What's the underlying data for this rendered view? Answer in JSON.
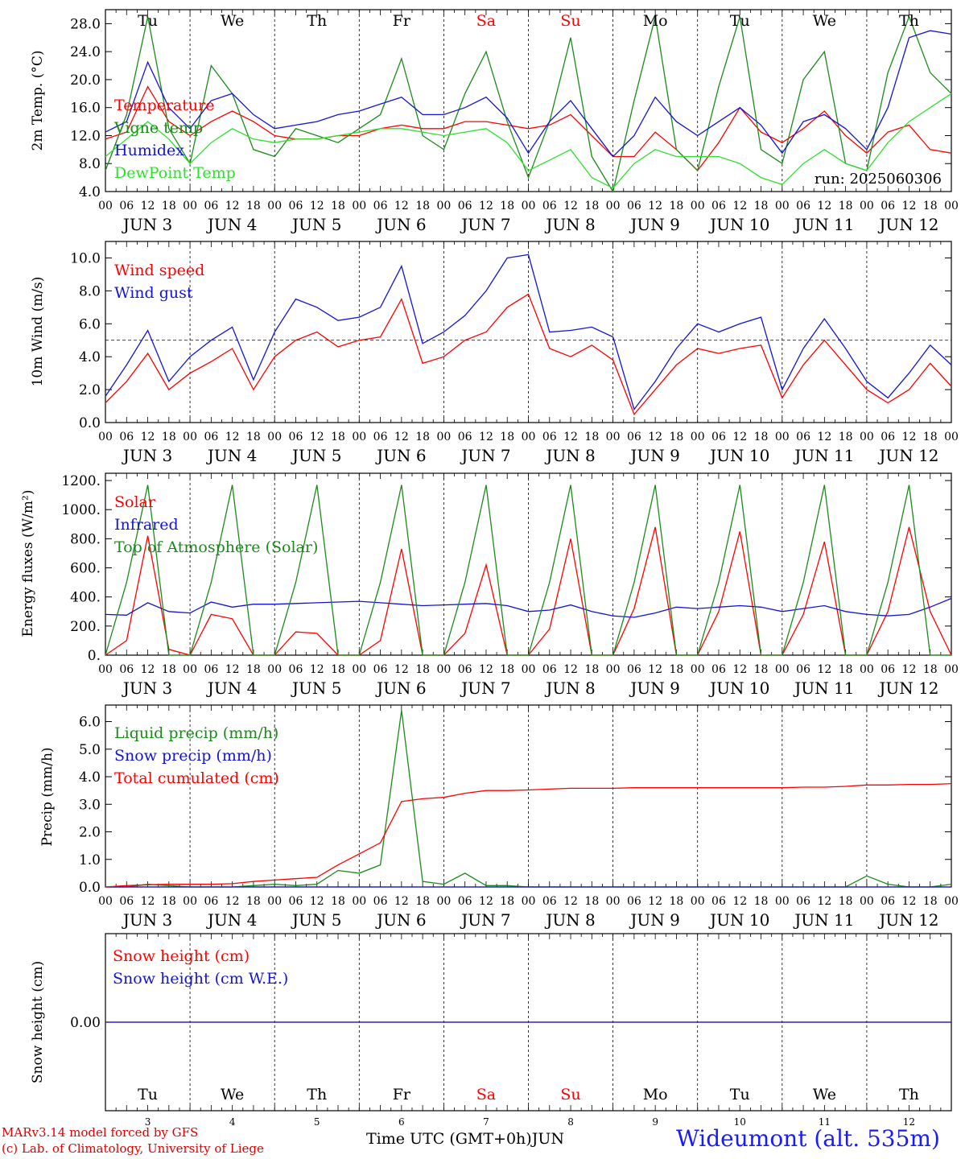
{
  "days": [
    {
      "dow": "Tu",
      "date": "3",
      "label": "JUN  3",
      "weekend": false
    },
    {
      "dow": "We",
      "date": "4",
      "label": "JUN  4",
      "weekend": false
    },
    {
      "dow": "Th",
      "date": "5",
      "label": "JUN  5",
      "weekend": false
    },
    {
      "dow": "Fr",
      "date": "6",
      "label": "JUN  6",
      "weekend": false
    },
    {
      "dow": "Sa",
      "date": "7",
      "label": "JUN  7",
      "weekend": true
    },
    {
      "dow": "Su",
      "date": "8",
      "label": "JUN  8",
      "weekend": true
    },
    {
      "dow": "Mo",
      "date": "9",
      "label": "JUN  9",
      "weekend": false
    },
    {
      "dow": "Tu",
      "date": "10",
      "label": "JUN 10",
      "weekend": false
    },
    {
      "dow": "We",
      "date": "11",
      "label": "JUN 11",
      "weekend": false
    },
    {
      "dow": "Th",
      "date": "12",
      "label": "JUN 12",
      "weekend": false
    }
  ],
  "hour_ticks": [
    "00",
    "06",
    "12",
    "18"
  ],
  "colors": {
    "red": "#ff0000",
    "green": "#1a8a1a",
    "blue": "#1414d4",
    "light_green": "#2ee02e",
    "station": "#1a1aff",
    "credit": "#e00000"
  },
  "footer": {
    "credit_line1": "MARv3.14 model forced by GFS",
    "credit_line2": "(c) Lab. of Climatology, University of Liege",
    "x_title": "Time UTC (GMT+0h)",
    "x_unit": "JUN",
    "station": "Wideumont (alt. 535m)"
  },
  "chart_data": [
    {
      "id": "temperature",
      "type": "line",
      "ylabel": "2m Temp. (°C)",
      "ylim": [
        4,
        30
      ],
      "yticks": [
        "4.0",
        "8.0",
        "12.0",
        "16.0",
        "20.0",
        "24.0",
        "28.0"
      ],
      "ytick_values": [
        4,
        8,
        12,
        16,
        20,
        24,
        28
      ],
      "note": "run: 2025060306",
      "x_hours": [
        0,
        6,
        12,
        18,
        24,
        30,
        36,
        42,
        48,
        54,
        60,
        66,
        72,
        78,
        84,
        90,
        96,
        102,
        108,
        114,
        120,
        126,
        132,
        138,
        144,
        150,
        156,
        162,
        168,
        174,
        180,
        186,
        192,
        198,
        204,
        210,
        216,
        222,
        228,
        234,
        240
      ],
      "series": [
        {
          "name": "Temperature",
          "color": "red",
          "values": [
            11.5,
            12.5,
            19,
            14,
            12,
            14,
            15.5,
            14,
            12,
            11.5,
            11.5,
            12,
            12,
            13,
            13.5,
            13,
            13,
            14,
            14,
            13.5,
            13,
            13.5,
            15,
            12,
            9,
            9,
            12.5,
            10,
            7,
            11,
            16,
            12.5,
            11,
            13,
            15.5,
            12,
            9.5,
            12.5,
            13.5,
            10,
            9.5
          ]
        },
        {
          "name": "Vigne temp",
          "color": "green",
          "values": [
            7,
            15,
            29,
            13,
            8,
            22,
            18,
            10,
            9,
            13,
            12,
            11,
            13,
            15,
            23,
            12,
            10,
            18,
            24,
            14,
            6,
            14,
            26,
            9,
            4,
            17,
            29,
            10,
            7,
            19,
            29,
            10,
            8,
            20,
            24,
            8,
            7,
            21,
            29,
            21,
            18
          ]
        },
        {
          "name": "Humidex",
          "color": "blue",
          "values": [
            12.5,
            14,
            22.5,
            16,
            13,
            17,
            18,
            15,
            13,
            13.5,
            14,
            15,
            15.5,
            16.5,
            17.5,
            15,
            15,
            16,
            17.5,
            14.5,
            9.5,
            14,
            17,
            13,
            9,
            12,
            17.5,
            14,
            12,
            14,
            16,
            13.5,
            9.5,
            14,
            15,
            13,
            10,
            16,
            26,
            27,
            26.5
          ]
        },
        {
          "name": "DewPoint Temp",
          "color": "light_green",
          "values": [
            9,
            11.5,
            14,
            11.5,
            8,
            11,
            13,
            11.5,
            11,
            11.5,
            11.5,
            12,
            12.5,
            13,
            13,
            12.5,
            12,
            12.5,
            13,
            11,
            7,
            8.5,
            10,
            6,
            4.5,
            8,
            10,
            9,
            9,
            9,
            8,
            6,
            5,
            8,
            10,
            8,
            7,
            11,
            14,
            16,
            18
          ]
        }
      ]
    },
    {
      "id": "wind",
      "type": "line",
      "ylabel": "10m Wind (m/s)",
      "ylim": [
        0,
        11
      ],
      "yticks": [
        "0.0",
        "2.0",
        "4.0",
        "6.0",
        "8.0",
        "10.0"
      ],
      "ytick_values": [
        0,
        2,
        4,
        6,
        8,
        10
      ],
      "hline": 5,
      "x_hours": [
        0,
        6,
        12,
        18,
        24,
        30,
        36,
        42,
        48,
        54,
        60,
        66,
        72,
        78,
        84,
        90,
        96,
        102,
        108,
        114,
        120,
        126,
        132,
        138,
        144,
        150,
        156,
        162,
        168,
        174,
        180,
        186,
        192,
        198,
        204,
        210,
        216,
        222,
        228,
        234,
        240
      ],
      "series": [
        {
          "name": "Wind speed",
          "color": "red",
          "values": [
            1.2,
            2.5,
            4.2,
            2,
            3,
            3.7,
            4.5,
            2,
            4,
            5,
            5.5,
            4.6,
            5,
            5.2,
            7.5,
            3.6,
            4,
            5,
            5.5,
            7,
            7.8,
            4.5,
            4,
            4.7,
            3.8,
            0.5,
            2,
            3.5,
            4.5,
            4.2,
            4.5,
            4.7,
            1.5,
            3.5,
            5,
            3.5,
            2,
            1.2,
            2,
            3.6,
            2.2
          ]
        },
        {
          "name": "Wind gust",
          "color": "blue",
          "values": [
            1.6,
            3.5,
            5.6,
            2.5,
            4,
            5,
            5.8,
            2.6,
            5.5,
            7.5,
            7,
            6.2,
            6.4,
            7,
            9.5,
            4.8,
            5.5,
            6.5,
            8,
            10,
            10.2,
            5.5,
            5.6,
            5.8,
            5.2,
            0.8,
            2.5,
            4.5,
            6,
            5.5,
            6,
            6.4,
            2,
            4.5,
            6.3,
            4.5,
            2.5,
            1.5,
            3,
            4.7,
            3.5
          ]
        }
      ]
    },
    {
      "id": "energy",
      "type": "line",
      "ylabel": "Energy fluxes (W/m²)",
      "ylim": [
        0,
        1250
      ],
      "yticks": [
        "0.",
        "200.",
        "400.",
        "600.",
        "800.",
        "1000.",
        "1200."
      ],
      "ytick_values": [
        0,
        200,
        400,
        600,
        800,
        1000,
        1200
      ],
      "x_hours": [
        0,
        6,
        12,
        18,
        24,
        30,
        36,
        42,
        48,
        54,
        60,
        66,
        72,
        78,
        84,
        90,
        96,
        102,
        108,
        114,
        120,
        126,
        132,
        138,
        144,
        150,
        156,
        162,
        168,
        174,
        180,
        186,
        192,
        198,
        204,
        210,
        216,
        222,
        228,
        234,
        240
      ],
      "series": [
        {
          "name": "Solar",
          "color": "red",
          "values": [
            0,
            100,
            820,
            40,
            0,
            280,
            250,
            0,
            0,
            160,
            150,
            0,
            0,
            100,
            730,
            0,
            0,
            150,
            620,
            0,
            0,
            180,
            800,
            0,
            0,
            320,
            880,
            0,
            0,
            300,
            850,
            0,
            0,
            280,
            780,
            0,
            0,
            300,
            880,
            300,
            0
          ]
        },
        {
          "name": "Infrared",
          "color": "blue",
          "values": [
            280,
            275,
            360,
            300,
            290,
            365,
            330,
            350,
            350,
            355,
            360,
            365,
            370,
            360,
            350,
            340,
            345,
            350,
            355,
            340,
            300,
            310,
            345,
            300,
            270,
            260,
            290,
            330,
            320,
            330,
            340,
            330,
            300,
            320,
            340,
            300,
            280,
            270,
            280,
            330,
            390
          ]
        },
        {
          "name": "Top of Atmosphere (Solar)",
          "color": "green",
          "values": [
            0,
            500,
            1170,
            0,
            0,
            500,
            1170,
            0,
            0,
            500,
            1170,
            0,
            0,
            500,
            1170,
            0,
            0,
            500,
            1170,
            0,
            0,
            500,
            1170,
            0,
            0,
            500,
            1170,
            0,
            0,
            500,
            1170,
            0,
            0,
            500,
            1170,
            0,
            0,
            500,
            1170,
            0,
            0
          ]
        }
      ]
    },
    {
      "id": "precip",
      "type": "line",
      "ylabel": "Precip (mm/h)",
      "ylim": [
        0,
        6.6
      ],
      "yticks": [
        "0.0",
        "1.0",
        "2.0",
        "3.0",
        "4.0",
        "5.0",
        "6.0"
      ],
      "ytick_values": [
        0,
        1,
        2,
        3,
        4,
        5,
        6
      ],
      "x_hours": [
        0,
        6,
        12,
        18,
        24,
        30,
        36,
        42,
        48,
        54,
        60,
        66,
        72,
        78,
        84,
        90,
        96,
        102,
        108,
        114,
        120,
        126,
        132,
        138,
        144,
        150,
        156,
        162,
        168,
        174,
        180,
        186,
        192,
        198,
        204,
        210,
        216,
        222,
        228,
        234,
        240
      ],
      "series": [
        {
          "name": "Liquid precip (mm/h)",
          "color": "green",
          "values": [
            0,
            0,
            0.1,
            0.05,
            0,
            0,
            0,
            0.05,
            0.1,
            0.05,
            0.1,
            0.6,
            0.5,
            0.8,
            6.4,
            0.2,
            0.1,
            0.5,
            0.05,
            0.05,
            0,
            0,
            0,
            0,
            0,
            0,
            0,
            0,
            0,
            0,
            0,
            0,
            0,
            0,
            0,
            0,
            0.4,
            0.1,
            0,
            0,
            0.1
          ]
        },
        {
          "name": "Snow precip (mm/h)",
          "color": "blue",
          "values": [
            0,
            0,
            0,
            0,
            0,
            0,
            0,
            0,
            0,
            0,
            0,
            0,
            0,
            0,
            0,
            0,
            0,
            0,
            0,
            0,
            0,
            0,
            0,
            0,
            0,
            0,
            0,
            0,
            0,
            0,
            0,
            0,
            0,
            0,
            0,
            0,
            0,
            0,
            0,
            0,
            0
          ]
        },
        {
          "name": "Total cumulated (cm)",
          "color": "red",
          "values": [
            0,
            0.05,
            0.08,
            0.1,
            0.1,
            0.1,
            0.12,
            0.2,
            0.25,
            0.3,
            0.35,
            0.8,
            1.2,
            1.6,
            3.1,
            3.2,
            3.25,
            3.4,
            3.5,
            3.5,
            3.52,
            3.55,
            3.58,
            3.58,
            3.58,
            3.6,
            3.6,
            3.6,
            3.6,
            3.6,
            3.6,
            3.6,
            3.6,
            3.62,
            3.62,
            3.65,
            3.7,
            3.7,
            3.72,
            3.72,
            3.75
          ]
        }
      ]
    },
    {
      "id": "snow",
      "type": "line",
      "ylabel": "Snow height (cm)",
      "ylim": [
        -1,
        1
      ],
      "yticks": [
        "0.00"
      ],
      "ytick_values": [
        0
      ],
      "x_hours": [
        0,
        240
      ],
      "series": [
        {
          "name": "Snow height (cm)",
          "color": "red",
          "values": [
            0,
            0
          ]
        },
        {
          "name": "Snow height (cm W.E.)",
          "color": "blue",
          "values": [
            0,
            0
          ]
        }
      ]
    }
  ]
}
